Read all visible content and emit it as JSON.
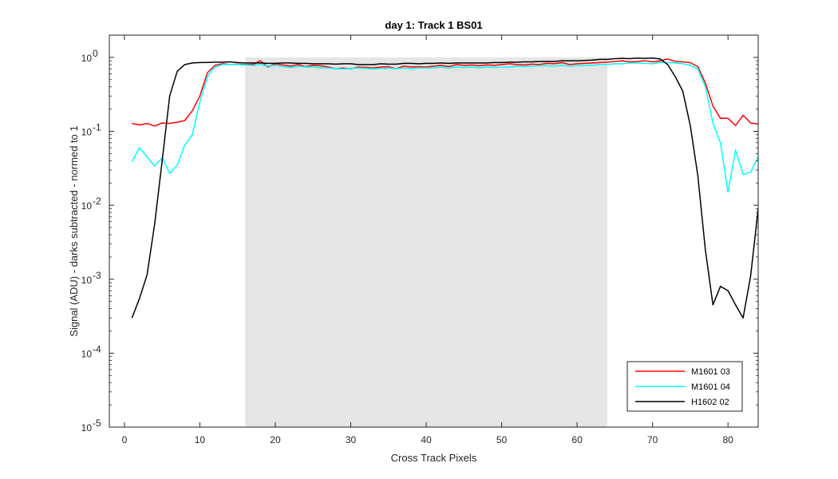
{
  "chart_data": {
    "type": "line",
    "title": "day 1: Track 1  BS01",
    "xlabel": "Cross Track Pixels",
    "ylabel": "Signal (ADU) - darks subtracted - normed to 1",
    "xlim": [
      -2,
      84
    ],
    "ylim": [
      1e-05,
      2
    ],
    "yscale": "log",
    "xticks": [
      0,
      10,
      20,
      30,
      40,
      50,
      60,
      70,
      80
    ],
    "yticks": [
      {
        "base": "10",
        "exp": "-5",
        "value": 1e-05
      },
      {
        "base": "10",
        "exp": "-4",
        "value": 0.0001
      },
      {
        "base": "10",
        "exp": "-3",
        "value": 0.001
      },
      {
        "base": "10",
        "exp": "-2",
        "value": 0.01
      },
      {
        "base": "10",
        "exp": "-1",
        "value": 0.1
      },
      {
        "base": "10",
        "exp": "0",
        "value": 1
      }
    ],
    "grid": false,
    "legend_position": "bottom-right",
    "shaded_region": {
      "x": [
        16,
        64
      ],
      "color": "#e5e5e5"
    },
    "series": [
      {
        "name": "M1601 03",
        "color": "#ff0000",
        "x": [
          1,
          2,
          3,
          4,
          5,
          6,
          7,
          8,
          9,
          10,
          11,
          12,
          13,
          14,
          15,
          16,
          17,
          18,
          19,
          20,
          21,
          22,
          23,
          24,
          25,
          26,
          27,
          28,
          29,
          30,
          31,
          32,
          33,
          34,
          35,
          36,
          37,
          38,
          39,
          40,
          41,
          42,
          43,
          44,
          45,
          46,
          47,
          48,
          49,
          50,
          51,
          52,
          53,
          54,
          55,
          56,
          57,
          58,
          59,
          60,
          61,
          62,
          63,
          64,
          65,
          66,
          67,
          68,
          69,
          70,
          71,
          72,
          73,
          74,
          75,
          76,
          77,
          78,
          79,
          80,
          81,
          82,
          83,
          84
        ],
        "y": [
          0.128,
          0.122,
          0.128,
          0.118,
          0.13,
          0.128,
          0.133,
          0.14,
          0.19,
          0.3,
          0.62,
          0.78,
          0.82,
          0.8,
          0.81,
          0.8,
          0.8,
          0.9,
          0.74,
          0.82,
          0.79,
          0.76,
          0.8,
          0.75,
          0.78,
          0.77,
          0.74,
          0.7,
          0.72,
          0.7,
          0.74,
          0.73,
          0.72,
          0.74,
          0.75,
          0.7,
          0.76,
          0.74,
          0.75,
          0.74,
          0.76,
          0.78,
          0.75,
          0.8,
          0.78,
          0.79,
          0.77,
          0.79,
          0.78,
          0.8,
          0.82,
          0.8,
          0.79,
          0.81,
          0.8,
          0.83,
          0.82,
          0.85,
          0.8,
          0.82,
          0.83,
          0.84,
          0.85,
          0.86,
          0.88,
          0.9,
          0.87,
          0.88,
          0.9,
          0.87,
          0.9,
          0.95,
          0.88,
          0.87,
          0.85,
          0.75,
          0.45,
          0.22,
          0.15,
          0.15,
          0.12,
          0.165,
          0.13,
          0.125
        ]
      },
      {
        "name": "M1601 04",
        "color": "#00ffff",
        "x": [
          1,
          2,
          3,
          4,
          5,
          6,
          7,
          8,
          9,
          10,
          11,
          12,
          13,
          14,
          15,
          16,
          17,
          18,
          19,
          20,
          21,
          22,
          23,
          24,
          25,
          26,
          27,
          28,
          29,
          30,
          31,
          32,
          33,
          34,
          35,
          36,
          37,
          38,
          39,
          40,
          41,
          42,
          43,
          44,
          45,
          46,
          47,
          48,
          49,
          50,
          51,
          52,
          53,
          54,
          55,
          56,
          57,
          58,
          59,
          60,
          61,
          62,
          63,
          64,
          65,
          66,
          67,
          68,
          69,
          70,
          71,
          72,
          73,
          74,
          75,
          76,
          77,
          78,
          79,
          80,
          81,
          82,
          83,
          84
        ],
        "y": [
          0.039,
          0.06,
          0.045,
          0.034,
          0.044,
          0.027,
          0.035,
          0.065,
          0.09,
          0.25,
          0.55,
          0.75,
          0.8,
          0.8,
          0.8,
          0.79,
          0.78,
          0.8,
          0.76,
          0.78,
          0.75,
          0.73,
          0.76,
          0.74,
          0.74,
          0.72,
          0.72,
          0.7,
          0.7,
          0.71,
          0.72,
          0.71,
          0.7,
          0.71,
          0.72,
          0.7,
          0.72,
          0.7,
          0.72,
          0.72,
          0.72,
          0.74,
          0.72,
          0.74,
          0.73,
          0.74,
          0.72,
          0.74,
          0.73,
          0.74,
          0.74,
          0.76,
          0.75,
          0.76,
          0.77,
          0.77,
          0.76,
          0.78,
          0.76,
          0.77,
          0.78,
          0.78,
          0.8,
          0.8,
          0.82,
          0.82,
          0.84,
          0.84,
          0.83,
          0.82,
          0.86,
          0.85,
          0.84,
          0.82,
          0.78,
          0.7,
          0.4,
          0.13,
          0.07,
          0.015,
          0.056,
          0.026,
          0.028,
          0.045
        ]
      },
      {
        "name": "H1602 02",
        "color": "#000000",
        "x": [
          1,
          2,
          3,
          4,
          5,
          6,
          7,
          8,
          9,
          10,
          11,
          12,
          13,
          14,
          15,
          16,
          17,
          18,
          19,
          20,
          21,
          22,
          23,
          24,
          25,
          26,
          27,
          28,
          29,
          30,
          31,
          32,
          33,
          34,
          35,
          36,
          37,
          38,
          39,
          40,
          41,
          42,
          43,
          44,
          45,
          46,
          47,
          48,
          49,
          50,
          51,
          52,
          53,
          54,
          55,
          56,
          57,
          58,
          59,
          60,
          61,
          62,
          63,
          64,
          65,
          66,
          67,
          68,
          69,
          70,
          71,
          72,
          73,
          74,
          75,
          76,
          77,
          78,
          79,
          80,
          81,
          82,
          83,
          84
        ],
        "y": [
          0.0003,
          0.00055,
          0.00115,
          0.0055,
          0.04,
          0.3,
          0.65,
          0.8,
          0.84,
          0.85,
          0.855,
          0.86,
          0.86,
          0.87,
          0.85,
          0.84,
          0.84,
          0.84,
          0.83,
          0.83,
          0.84,
          0.84,
          0.83,
          0.83,
          0.82,
          0.82,
          0.82,
          0.81,
          0.82,
          0.82,
          0.8,
          0.8,
          0.8,
          0.82,
          0.81,
          0.81,
          0.83,
          0.83,
          0.82,
          0.83,
          0.83,
          0.84,
          0.83,
          0.84,
          0.84,
          0.84,
          0.84,
          0.84,
          0.85,
          0.85,
          0.86,
          0.86,
          0.87,
          0.87,
          0.88,
          0.88,
          0.88,
          0.9,
          0.9,
          0.9,
          0.91,
          0.92,
          0.94,
          0.94,
          0.96,
          0.97,
          0.96,
          0.98,
          0.97,
          0.98,
          0.95,
          0.8,
          0.55,
          0.35,
          0.12,
          0.025,
          0.0025,
          0.00045,
          0.0008,
          0.0007,
          0.00045,
          0.0003,
          0.0011,
          0.009
        ]
      }
    ]
  }
}
